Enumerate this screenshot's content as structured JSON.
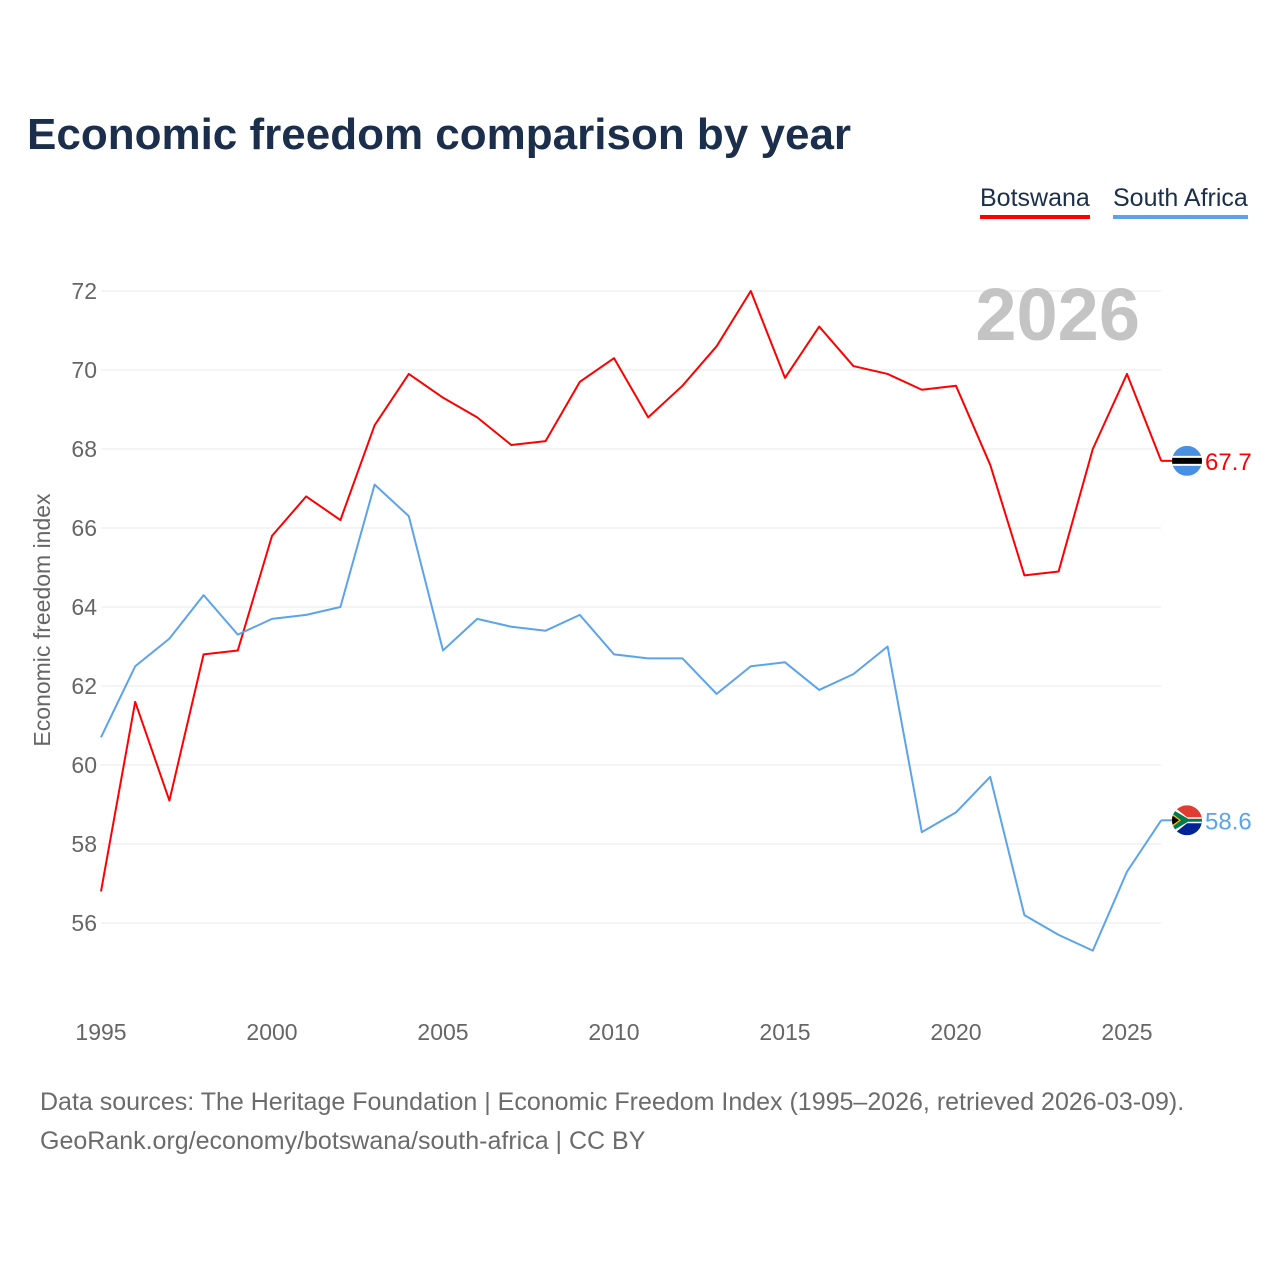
{
  "chart_data": {
    "type": "line",
    "title": "Economic freedom comparison by year",
    "xlabel": "",
    "ylabel": "Economic freedom index",
    "xlim": [
      1995,
      2026
    ],
    "ylim": [
      54,
      73
    ],
    "x_ticks": [
      1995,
      2000,
      2005,
      2010,
      2015,
      2020,
      2025
    ],
    "y_ticks": [
      56,
      58,
      60,
      62,
      64,
      66,
      68,
      70,
      72
    ],
    "grid": true,
    "legend_placement": "top-right",
    "year_watermark": "2026",
    "x": [
      1995,
      1996,
      1997,
      1998,
      1999,
      2000,
      2001,
      2002,
      2003,
      2004,
      2005,
      2006,
      2007,
      2008,
      2009,
      2010,
      2011,
      2012,
      2013,
      2014,
      2015,
      2016,
      2017,
      2018,
      2019,
      2020,
      2021,
      2022,
      2023,
      2024,
      2025,
      2026
    ],
    "series": [
      {
        "name": "Botswana",
        "color": "#ff0000",
        "end_label": "67.7",
        "values": [
          56.8,
          61.6,
          59.1,
          62.8,
          62.9,
          65.8,
          66.8,
          66.2,
          68.6,
          69.9,
          69.3,
          68.8,
          68.1,
          68.2,
          69.7,
          70.3,
          68.8,
          69.6,
          70.6,
          72.0,
          69.8,
          71.1,
          70.1,
          69.9,
          69.5,
          69.6,
          67.6,
          64.8,
          64.9,
          68.0,
          69.9,
          67.7
        ]
      },
      {
        "name": "South Africa",
        "color": "#5ba4ea",
        "end_label": "58.6",
        "values": [
          60.7,
          62.5,
          63.2,
          64.3,
          63.3,
          63.7,
          63.8,
          64.0,
          67.1,
          66.3,
          62.9,
          63.7,
          63.5,
          63.4,
          63.8,
          62.8,
          62.7,
          62.7,
          61.8,
          62.5,
          62.6,
          61.9,
          62.3,
          63.0,
          58.3,
          58.8,
          59.7,
          56.2,
          55.7,
          55.3,
          57.3,
          58.6
        ]
      }
    ]
  },
  "footer": {
    "line1": "Data sources: The Heritage Foundation | Economic Freedom Index (1995–2026, retrieved 2026-03-09).",
    "line2": "GeoRank.org/economy/botswana/south-africa | CC BY"
  }
}
